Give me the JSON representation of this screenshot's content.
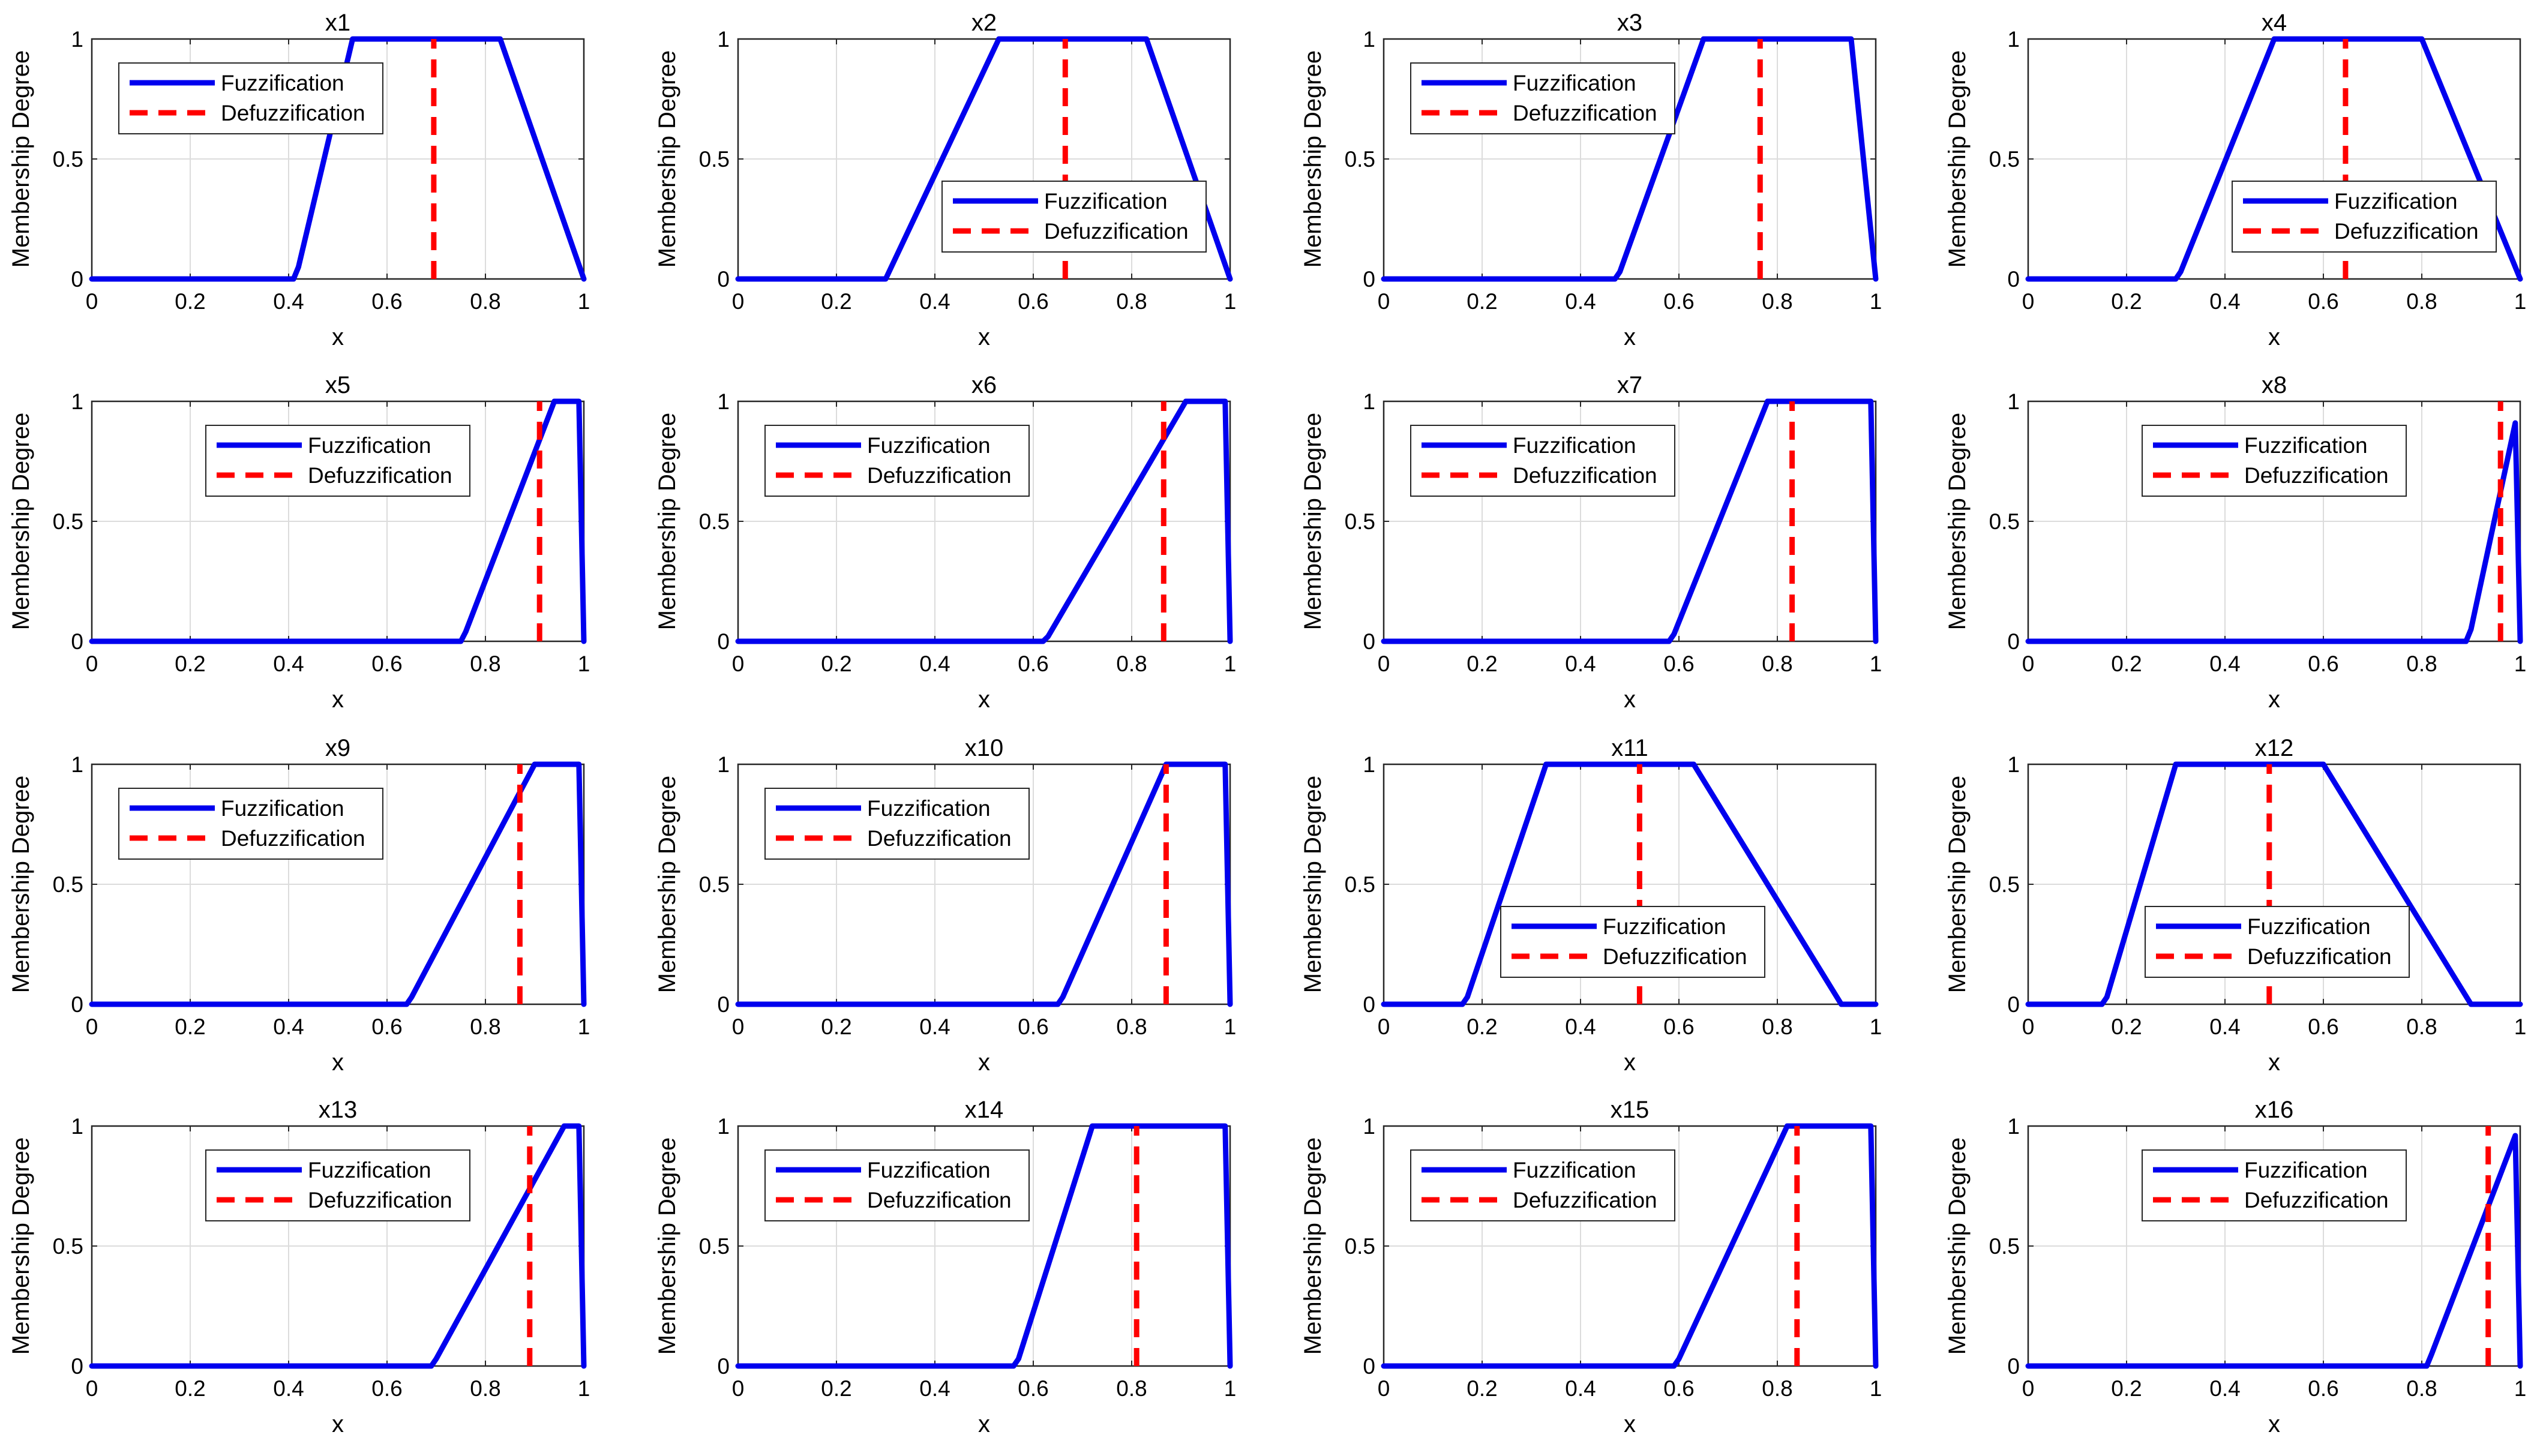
{
  "figure": {
    "colors": {
      "fuzzification": "#0000ee",
      "defuzzification": "#ff0000",
      "grid": "#dcdcdc",
      "axis": "#262626"
    }
  },
  "chart_data": [
    {
      "type": "line",
      "title": "x1",
      "xlabel": "x",
      "ylabel": "Membership Degree",
      "xlim": [
        0,
        1
      ],
      "ylim": [
        0,
        1
      ],
      "xticks": [
        "0",
        "0.2",
        "0.4",
        "0.6",
        "0.8",
        "1"
      ],
      "yticks": [
        "0",
        "0.5",
        "1"
      ],
      "grid": true,
      "legend": {
        "position": "top-left",
        "entries": [
          "Fuzzification",
          "Defuzzification"
        ]
      },
      "series": [
        {
          "name": "Fuzzification",
          "style": "solid",
          "x": [
            0,
            0.41,
            0.42,
            0.53,
            0.83,
            1.0
          ],
          "y": [
            0,
            0,
            0.05,
            1,
            1,
            0
          ]
        },
        {
          "name": "Defuzzification",
          "style": "dashed",
          "x": [
            0.695,
            0.695
          ],
          "y": [
            0,
            1
          ]
        }
      ]
    },
    {
      "type": "line",
      "title": "x2",
      "xlabel": "x",
      "ylabel": "Membership Degree",
      "xlim": [
        0,
        1
      ],
      "ylim": [
        0,
        1
      ],
      "xticks": [
        "0",
        "0.2",
        "0.4",
        "0.6",
        "0.8",
        "1"
      ],
      "yticks": [
        "0",
        "0.5",
        "1"
      ],
      "grid": true,
      "legend": {
        "position": "bottom-right",
        "entries": [
          "Fuzzification",
          "Defuzzification"
        ]
      },
      "series": [
        {
          "name": "Fuzzification",
          "style": "solid",
          "x": [
            0,
            0.3,
            0.53,
            0.83,
            1.0
          ],
          "y": [
            0,
            0,
            1,
            1,
            0
          ]
        },
        {
          "name": "Defuzzification",
          "style": "dashed",
          "x": [
            0.665,
            0.665
          ],
          "y": [
            0,
            1
          ]
        }
      ]
    },
    {
      "type": "line",
      "title": "x3",
      "xlabel": "x",
      "ylabel": "Membership Degree",
      "xlim": [
        0,
        1
      ],
      "ylim": [
        0,
        1
      ],
      "xticks": [
        "0",
        "0.2",
        "0.4",
        "0.6",
        "0.8",
        "1"
      ],
      "yticks": [
        "0",
        "0.5",
        "1"
      ],
      "grid": true,
      "legend": {
        "position": "top-left",
        "entries": [
          "Fuzzification",
          "Defuzzification"
        ]
      },
      "series": [
        {
          "name": "Fuzzification",
          "style": "solid",
          "x": [
            0,
            0.47,
            0.48,
            0.65,
            0.95,
            1.0
          ],
          "y": [
            0,
            0,
            0.03,
            1,
            1,
            0
          ]
        },
        {
          "name": "Defuzzification",
          "style": "dashed",
          "x": [
            0.765,
            0.765
          ],
          "y": [
            0,
            1
          ]
        }
      ]
    },
    {
      "type": "line",
      "title": "x4",
      "xlabel": "x",
      "ylabel": "Membership Degree",
      "xlim": [
        0,
        1
      ],
      "ylim": [
        0,
        1
      ],
      "xticks": [
        "0",
        "0.2",
        "0.4",
        "0.6",
        "0.8",
        "1"
      ],
      "yticks": [
        "0",
        "0.5",
        "1"
      ],
      "grid": true,
      "legend": {
        "position": "bottom-right",
        "entries": [
          "Fuzzification",
          "Defuzzification"
        ]
      },
      "series": [
        {
          "name": "Fuzzification",
          "style": "solid",
          "x": [
            0,
            0.3,
            0.31,
            0.5,
            0.8,
            1.0
          ],
          "y": [
            0,
            0,
            0.03,
            1,
            1,
            0
          ]
        },
        {
          "name": "Defuzzification",
          "style": "dashed",
          "x": [
            0.645,
            0.645
          ],
          "y": [
            0,
            1
          ]
        }
      ]
    },
    {
      "type": "line",
      "title": "x5",
      "xlabel": "x",
      "ylabel": "Membership Degree",
      "xlim": [
        0,
        1
      ],
      "ylim": [
        0,
        1
      ],
      "xticks": [
        "0",
        "0.2",
        "0.4",
        "0.6",
        "0.8",
        "1"
      ],
      "yticks": [
        "0",
        "0.5",
        "1"
      ],
      "grid": true,
      "legend": {
        "position": "top-center",
        "entries": [
          "Fuzzification",
          "Defuzzification"
        ]
      },
      "series": [
        {
          "name": "Fuzzification",
          "style": "solid",
          "x": [
            0,
            0.75,
            0.76,
            0.94,
            0.99,
            1.0
          ],
          "y": [
            0,
            0,
            0.04,
            1,
            1,
            0
          ]
        },
        {
          "name": "Defuzzification",
          "style": "dashed",
          "x": [
            0.91,
            0.91
          ],
          "y": [
            0,
            1
          ]
        }
      ]
    },
    {
      "type": "line",
      "title": "x6",
      "xlabel": "x",
      "ylabel": "Membership Degree",
      "xlim": [
        0,
        1
      ],
      "ylim": [
        0,
        1
      ],
      "xticks": [
        "0",
        "0.2",
        "0.4",
        "0.6",
        "0.8",
        "1"
      ],
      "yticks": [
        "0",
        "0.5",
        "1"
      ],
      "grid": true,
      "legend": {
        "position": "top-left",
        "entries": [
          "Fuzzification",
          "Defuzzification"
        ]
      },
      "series": [
        {
          "name": "Fuzzification",
          "style": "solid",
          "x": [
            0,
            0.62,
            0.63,
            0.91,
            0.99,
            1.0
          ],
          "y": [
            0,
            0,
            0.02,
            1,
            1,
            0
          ]
        },
        {
          "name": "Defuzzification",
          "style": "dashed",
          "x": [
            0.865,
            0.865
          ],
          "y": [
            0,
            1
          ]
        }
      ]
    },
    {
      "type": "line",
      "title": "x7",
      "xlabel": "x",
      "ylabel": "Membership Degree",
      "xlim": [
        0,
        1
      ],
      "ylim": [
        0,
        1
      ],
      "xticks": [
        "0",
        "0.2",
        "0.4",
        "0.6",
        "0.8",
        "1"
      ],
      "yticks": [
        "0",
        "0.5",
        "1"
      ],
      "grid": true,
      "legend": {
        "position": "top-left",
        "entries": [
          "Fuzzification",
          "Defuzzification"
        ]
      },
      "series": [
        {
          "name": "Fuzzification",
          "style": "solid",
          "x": [
            0,
            0.58,
            0.59,
            0.78,
            0.99,
            1.0
          ],
          "y": [
            0,
            0,
            0.03,
            1,
            1,
            0
          ]
        },
        {
          "name": "Defuzzification",
          "style": "dashed",
          "x": [
            0.83,
            0.83
          ],
          "y": [
            0,
            1
          ]
        }
      ]
    },
    {
      "type": "line",
      "title": "x8",
      "xlabel": "x",
      "ylabel": "Membership Degree",
      "xlim": [
        0,
        1
      ],
      "ylim": [
        0,
        1
      ],
      "xticks": [
        "0",
        "0.2",
        "0.4",
        "0.6",
        "0.8",
        "1"
      ],
      "yticks": [
        "0",
        "0.5",
        "1"
      ],
      "grid": true,
      "legend": {
        "position": "top-center",
        "entries": [
          "Fuzzification",
          "Defuzzification"
        ]
      },
      "series": [
        {
          "name": "Fuzzification",
          "style": "solid",
          "x": [
            0,
            0.89,
            0.9,
            0.99,
            1.0
          ],
          "y": [
            0,
            0,
            0.05,
            0.91,
            0
          ]
        },
        {
          "name": "Defuzzification",
          "style": "dashed",
          "x": [
            0.96,
            0.96
          ],
          "y": [
            0,
            1
          ]
        }
      ]
    },
    {
      "type": "line",
      "title": "x9",
      "xlabel": "x",
      "ylabel": "Membership Degree",
      "xlim": [
        0,
        1
      ],
      "ylim": [
        0,
        1
      ],
      "xticks": [
        "0",
        "0.2",
        "0.4",
        "0.6",
        "0.8",
        "1"
      ],
      "yticks": [
        "0",
        "0.5",
        "1"
      ],
      "grid": true,
      "legend": {
        "position": "top-left",
        "entries": [
          "Fuzzification",
          "Defuzzification"
        ]
      },
      "series": [
        {
          "name": "Fuzzification",
          "style": "solid",
          "x": [
            0,
            0.64,
            0.65,
            0.9,
            0.99,
            1.0
          ],
          "y": [
            0,
            0,
            0.03,
            1,
            1,
            0
          ]
        },
        {
          "name": "Defuzzification",
          "style": "dashed",
          "x": [
            0.87,
            0.87
          ],
          "y": [
            0,
            1
          ]
        }
      ]
    },
    {
      "type": "line",
      "title": "x10",
      "xlabel": "x",
      "ylabel": "Membership Degree",
      "xlim": [
        0,
        1
      ],
      "ylim": [
        0,
        1
      ],
      "xticks": [
        "0",
        "0.2",
        "0.4",
        "0.6",
        "0.8",
        "1"
      ],
      "yticks": [
        "0",
        "0.5",
        "1"
      ],
      "grid": true,
      "legend": {
        "position": "top-left",
        "entries": [
          "Fuzzification",
          "Defuzzification"
        ]
      },
      "series": [
        {
          "name": "Fuzzification",
          "style": "solid",
          "x": [
            0,
            0.65,
            0.66,
            0.87,
            0.99,
            1.0
          ],
          "y": [
            0,
            0,
            0.03,
            1,
            1,
            0
          ]
        },
        {
          "name": "Defuzzification",
          "style": "dashed",
          "x": [
            0.87,
            0.87
          ],
          "y": [
            0,
            1
          ]
        }
      ]
    },
    {
      "type": "line",
      "title": "x11",
      "xlabel": "x",
      "ylabel": "Membership Degree",
      "xlim": [
        0,
        1
      ],
      "ylim": [
        0,
        1
      ],
      "xticks": [
        "0",
        "0.2",
        "0.4",
        "0.6",
        "0.8",
        "1"
      ],
      "yticks": [
        "0",
        "0.5",
        "1"
      ],
      "grid": true,
      "legend": {
        "position": "bottom-center",
        "entries": [
          "Fuzzification",
          "Defuzzification"
        ]
      },
      "series": [
        {
          "name": "Fuzzification",
          "style": "solid",
          "x": [
            0,
            0.16,
            0.17,
            0.33,
            0.63,
            0.93,
            1.0
          ],
          "y": [
            0,
            0,
            0.03,
            1,
            1,
            0,
            0
          ]
        },
        {
          "name": "Defuzzification",
          "style": "dashed",
          "x": [
            0.52,
            0.52
          ],
          "y": [
            0,
            1
          ]
        }
      ]
    },
    {
      "type": "line",
      "title": "x12",
      "xlabel": "x",
      "ylabel": "Membership Degree",
      "xlim": [
        0,
        1
      ],
      "ylim": [
        0,
        1
      ],
      "xticks": [
        "0",
        "0.2",
        "0.4",
        "0.6",
        "0.8",
        "1"
      ],
      "yticks": [
        "0",
        "0.5",
        "1"
      ],
      "grid": true,
      "legend": {
        "position": "bottom-center",
        "entries": [
          "Fuzzification",
          "Defuzzification"
        ]
      },
      "series": [
        {
          "name": "Fuzzification",
          "style": "solid",
          "x": [
            0,
            0.15,
            0.16,
            0.3,
            0.6,
            0.9,
            1.0
          ],
          "y": [
            0,
            0,
            0.03,
            1,
            1,
            0,
            0
          ]
        },
        {
          "name": "Defuzzification",
          "style": "dashed",
          "x": [
            0.49,
            0.49
          ],
          "y": [
            0,
            1
          ]
        }
      ]
    },
    {
      "type": "line",
      "title": "x13",
      "xlabel": "x",
      "ylabel": "Membership Degree",
      "xlim": [
        0,
        1
      ],
      "ylim": [
        0,
        1
      ],
      "xticks": [
        "0",
        "0.2",
        "0.4",
        "0.6",
        "0.8",
        "1"
      ],
      "yticks": [
        "0",
        "0.5",
        "1"
      ],
      "grid": true,
      "legend": {
        "position": "top-center",
        "entries": [
          "Fuzzification",
          "Defuzzification"
        ]
      },
      "series": [
        {
          "name": "Fuzzification",
          "style": "solid",
          "x": [
            0,
            0.69,
            0.7,
            0.96,
            0.99,
            1.0
          ],
          "y": [
            0,
            0,
            0.03,
            1,
            1,
            0
          ]
        },
        {
          "name": "Defuzzification",
          "style": "dashed",
          "x": [
            0.89,
            0.89
          ],
          "y": [
            0,
            1
          ]
        }
      ]
    },
    {
      "type": "line",
      "title": "x14",
      "xlabel": "x",
      "ylabel": "Membership Degree",
      "xlim": [
        0,
        1
      ],
      "ylim": [
        0,
        1
      ],
      "xticks": [
        "0",
        "0.2",
        "0.4",
        "0.6",
        "0.8",
        "1"
      ],
      "yticks": [
        "0",
        "0.5",
        "1"
      ],
      "grid": true,
      "legend": {
        "position": "top-left",
        "entries": [
          "Fuzzification",
          "Defuzzification"
        ]
      },
      "series": [
        {
          "name": "Fuzzification",
          "style": "solid",
          "x": [
            0,
            0.56,
            0.57,
            0.72,
            0.99,
            1.0
          ],
          "y": [
            0,
            0,
            0.03,
            1,
            1,
            0
          ]
        },
        {
          "name": "Defuzzification",
          "style": "dashed",
          "x": [
            0.81,
            0.81
          ],
          "y": [
            0,
            1
          ]
        }
      ]
    },
    {
      "type": "line",
      "title": "x15",
      "xlabel": "x",
      "ylabel": "Membership Degree",
      "xlim": [
        0,
        1
      ],
      "ylim": [
        0,
        1
      ],
      "xticks": [
        "0",
        "0.2",
        "0.4",
        "0.6",
        "0.8",
        "1"
      ],
      "yticks": [
        "0",
        "0.5",
        "1"
      ],
      "grid": true,
      "legend": {
        "position": "top-left",
        "entries": [
          "Fuzzification",
          "Defuzzification"
        ]
      },
      "series": [
        {
          "name": "Fuzzification",
          "style": "solid",
          "x": [
            0,
            0.59,
            0.6,
            0.82,
            0.99,
            1.0
          ],
          "y": [
            0,
            0,
            0.03,
            1,
            1,
            0
          ]
        },
        {
          "name": "Defuzzification",
          "style": "dashed",
          "x": [
            0.84,
            0.84
          ],
          "y": [
            0,
            1
          ]
        }
      ]
    },
    {
      "type": "line",
      "title": "x16",
      "xlabel": "x",
      "ylabel": "Membership Degree",
      "xlim": [
        0,
        1
      ],
      "ylim": [
        0,
        1
      ],
      "xticks": [
        "0",
        "0.2",
        "0.4",
        "0.6",
        "0.8",
        "1"
      ],
      "yticks": [
        "0",
        "0.5",
        "1"
      ],
      "grid": true,
      "legend": {
        "position": "top-center",
        "entries": [
          "Fuzzification",
          "Defuzzification"
        ]
      },
      "series": [
        {
          "name": "Fuzzification",
          "style": "solid",
          "x": [
            0,
            0.81,
            0.82,
            0.99,
            1.0
          ],
          "y": [
            0,
            0,
            0.05,
            0.96,
            0
          ]
        },
        {
          "name": "Defuzzification",
          "style": "dashed",
          "x": [
            0.935,
            0.935
          ],
          "y": [
            0,
            1
          ]
        }
      ]
    }
  ]
}
